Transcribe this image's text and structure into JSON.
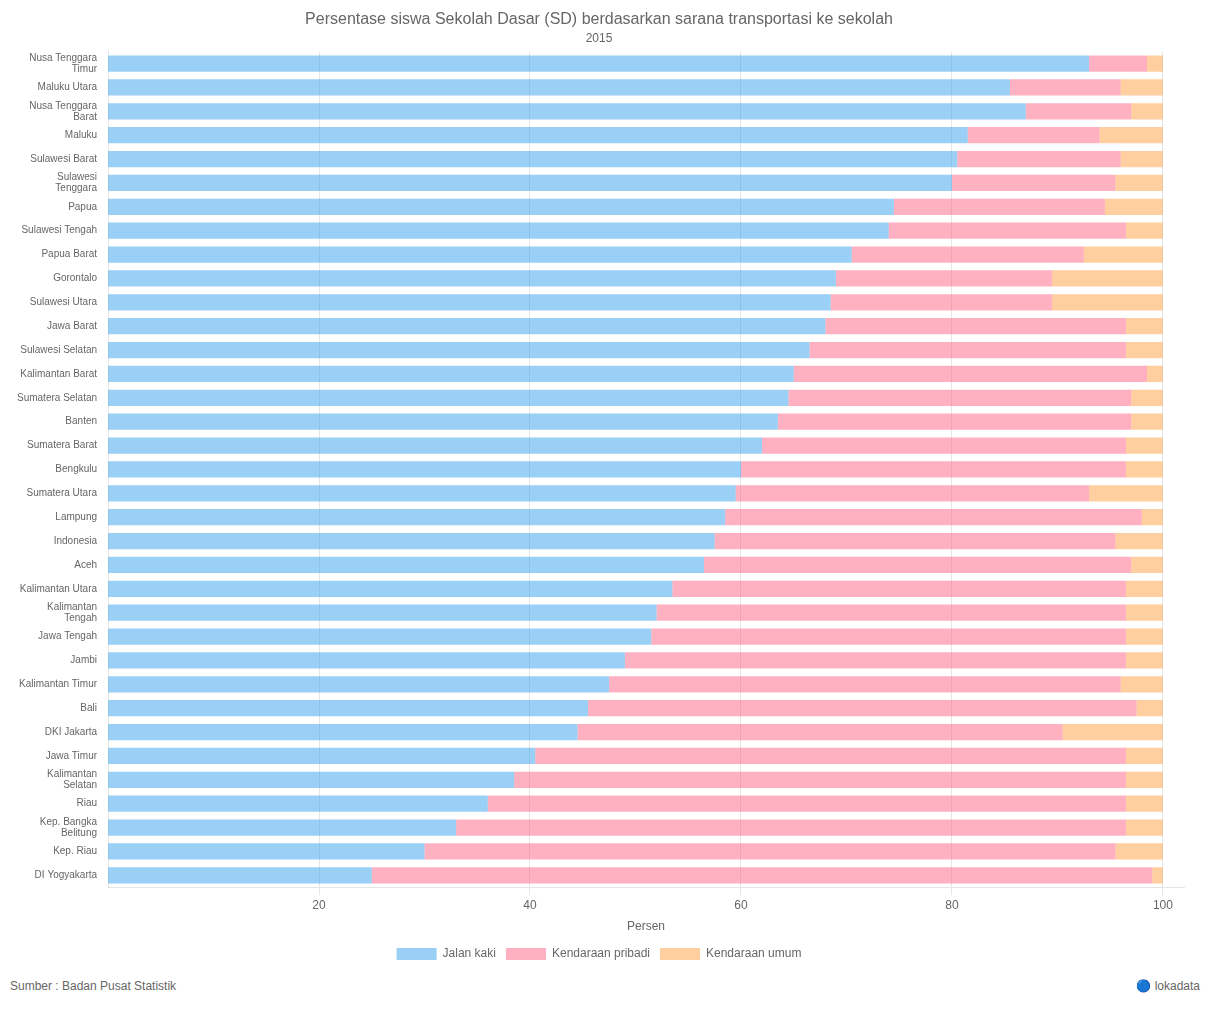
{
  "chart_data": {
    "type": "bar",
    "orientation": "horizontal",
    "stacked": true,
    "title": "Persentase siswa Sekolah Dasar (SD) berdasarkan sarana transportasi ke sekolah",
    "subtitle": "2015",
    "xlabel": "Persen",
    "source": "Sumber : Badan Pusat Statistik",
    "annotations": [
      "🔵 lokadata"
    ],
    "categories": [
      "Nusa Tenggara\nTimur",
      "Maluku Utara",
      "Nusa Tenggara\nBarat",
      "Maluku",
      "Sulawesi Barat",
      "Sulawesi\nTenggara",
      "Papua",
      "Sulawesi Tengah",
      "Papua Barat",
      "Gorontalo",
      "Sulawesi Utara",
      "Jawa Barat",
      "Sulawesi Selatan",
      "Kalimantan Barat",
      "Sumatera Selatan",
      "Banten",
      "Sumatera Barat",
      "Bengkulu",
      "Sumatera Utara",
      "Lampung",
      "Indonesia",
      "Aceh",
      "Kalimantan Utara",
      "Kalimantan\nTengah",
      "Jawa Tengah",
      "Jambi",
      "Kalimantan Timur",
      "Bali",
      "DKI Jakarta",
      "Jawa Timur",
      "Kalimantan\nSelatan",
      "Riau",
      "Kep. Bangka\nBelitung",
      "Kep. Riau",
      "DI Yogyakarta"
    ],
    "series": [
      {
        "name": "Jalan kaki",
        "values": [
          93.0,
          85.5,
          87.0,
          81.5,
          80.5,
          80.0,
          74.5,
          74.0,
          70.5,
          69.0,
          68.5,
          68.0,
          66.5,
          65.0,
          64.5,
          63.5,
          62.0,
          60.0,
          59.5,
          58.5,
          57.5,
          56.5,
          53.5,
          52.0,
          51.5,
          49.0,
          47.5,
          45.5,
          44.5,
          40.5,
          38.5,
          36.0,
          33.0,
          30.0,
          25.0
        ]
      },
      {
        "name": "Kendaraan pribadi",
        "values": [
          5.5,
          10.5,
          10.0,
          12.5,
          15.5,
          15.5,
          20.0,
          22.5,
          22.0,
          20.5,
          21.0,
          28.5,
          30.0,
          33.5,
          32.5,
          33.5,
          34.5,
          36.5,
          33.5,
          39.5,
          38.0,
          40.5,
          43.0,
          44.5,
          45.0,
          47.5,
          48.5,
          52.0,
          46.0,
          56.0,
          58.0,
          60.5,
          63.5,
          65.5,
          74.0
        ]
      },
      {
        "name": "Kendaraan umum",
        "values": [
          1.5,
          4.0,
          3.0,
          6.0,
          4.0,
          4.5,
          5.5,
          3.5,
          7.5,
          10.5,
          10.5,
          3.5,
          3.5,
          1.5,
          3.0,
          3.0,
          3.5,
          3.5,
          7.0,
          2.0,
          4.5,
          3.0,
          3.5,
          3.5,
          3.5,
          3.5,
          4.0,
          2.5,
          9.5,
          3.5,
          3.5,
          3.5,
          3.5,
          4.5,
          1.0
        ]
      }
    ],
    "xlim": [
      0,
      102
    ],
    "xticks": [
      20,
      40,
      60,
      80,
      100
    ],
    "grid": true,
    "legend": "bottom"
  }
}
